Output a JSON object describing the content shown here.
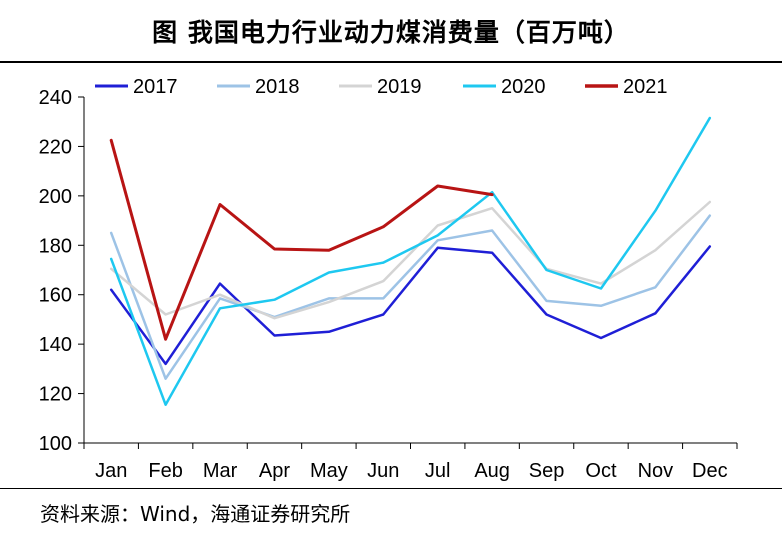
{
  "header": {
    "title": "图  我国电力行业动力煤消费量（百万吨）"
  },
  "footer": {
    "source": "资料来源：Wind，海通证券研究所"
  },
  "chart_data": {
    "type": "line",
    "title": "我国电力行业动力煤消费量（百万吨）",
    "xlabel": "",
    "ylabel": "",
    "categories": [
      "Jan",
      "Feb",
      "Mar",
      "Apr",
      "May",
      "Jun",
      "Jul",
      "Aug",
      "Sep",
      "Oct",
      "Nov",
      "Dec"
    ],
    "ylim": [
      100,
      240
    ],
    "yticks": [
      100,
      120,
      140,
      160,
      180,
      200,
      220,
      240
    ],
    "legend_position": "top",
    "series": [
      {
        "name": "2017",
        "color": "#1f1fd6",
        "width": 2.5,
        "values": [
          162,
          132,
          164.5,
          143.5,
          145,
          152,
          179,
          177,
          152,
          142.5,
          152.5,
          179.5
        ]
      },
      {
        "name": "2018",
        "color": "#9dc3e6",
        "width": 2.5,
        "values": [
          185,
          126,
          158.5,
          151,
          158.5,
          158.5,
          182,
          186,
          157.5,
          155.5,
          163,
          192
        ]
      },
      {
        "name": "2019",
        "color": "#d4d4d4",
        "width": 2.5,
        "values": [
          170.5,
          152,
          160,
          150.5,
          157,
          165.5,
          188,
          195,
          170.5,
          164.5,
          178,
          197.5
        ]
      },
      {
        "name": "2020",
        "color": "#1ec8f0",
        "width": 2.5,
        "values": [
          174.5,
          115.5,
          154.5,
          158,
          169,
          173,
          184,
          201.5,
          170,
          162.5,
          194,
          231.5
        ]
      },
      {
        "name": "2021",
        "color": "#b81414",
        "width": 3,
        "values": [
          222.5,
          142,
          196.5,
          178.5,
          178,
          187.5,
          204,
          200.5,
          null,
          null,
          null,
          null
        ]
      }
    ]
  }
}
